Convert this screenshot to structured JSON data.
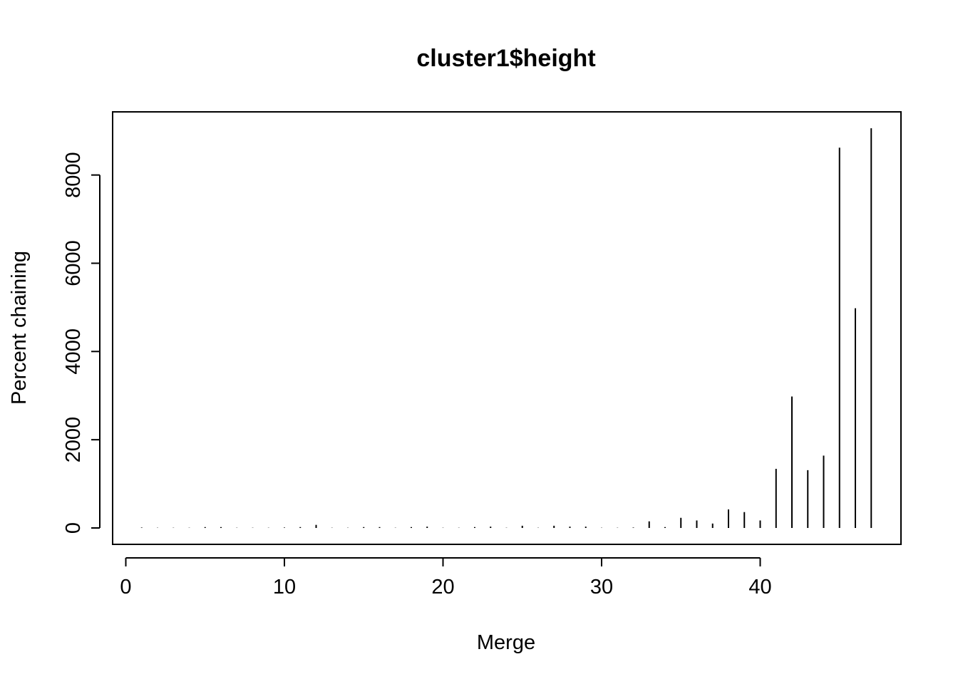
{
  "chart_data": {
    "type": "bar",
    "style": "histogram-lines",
    "title": "cluster1$height",
    "xlabel": "Merge",
    "ylabel": "Percent chaining",
    "xlim": [
      0,
      48
    ],
    "ylim": [
      0,
      9400
    ],
    "x_ticks": [
      0,
      10,
      20,
      30,
      40
    ],
    "y_ticks": [
      0,
      2000,
      4000,
      6000,
      8000
    ],
    "x_tick_labels": [
      "0",
      "10",
      "20",
      "30",
      "40"
    ],
    "y_tick_labels": [
      "0",
      "2000",
      "4000",
      "6000",
      "8000"
    ],
    "grid": false,
    "x": [
      1,
      2,
      3,
      4,
      5,
      6,
      7,
      8,
      9,
      10,
      11,
      12,
      13,
      14,
      15,
      16,
      17,
      18,
      19,
      20,
      21,
      22,
      23,
      24,
      25,
      26,
      27,
      28,
      29,
      30,
      31,
      32,
      33,
      34,
      35,
      36,
      37,
      38,
      39,
      40,
      41,
      42,
      43,
      44,
      45,
      46,
      47
    ],
    "values": [
      10,
      5,
      5,
      5,
      20,
      20,
      5,
      5,
      5,
      10,
      20,
      70,
      5,
      5,
      20,
      20,
      5,
      20,
      30,
      5,
      5,
      20,
      30,
      5,
      50,
      5,
      50,
      30,
      30,
      5,
      5,
      10,
      150,
      20,
      230,
      170,
      100,
      420,
      360,
      170,
      1340,
      2980,
      1310,
      1640,
      8620,
      4980,
      9060
    ],
    "color": "#000000"
  }
}
